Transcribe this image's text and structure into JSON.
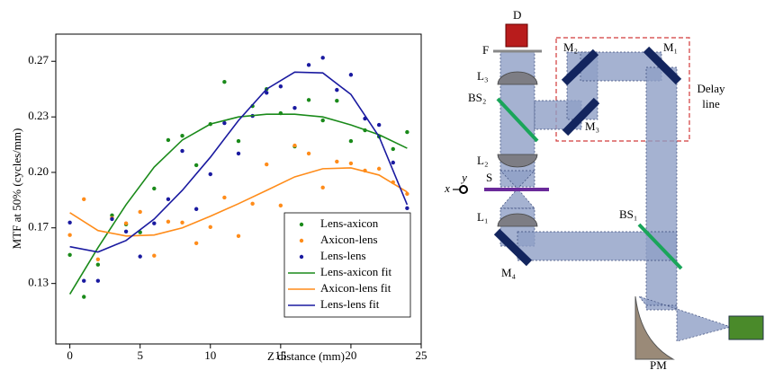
{
  "chart_data": {
    "type": "scatter",
    "xlabel": "Z distance (mm)",
    "ylabel": "MTF at 50% (cycles/mm)",
    "xlim": [
      -1,
      25
    ],
    "ylim": [
      0.097,
      0.283
    ],
    "xticks": [
      0,
      5,
      10,
      15,
      20,
      25
    ],
    "yticks": [
      {
        "value": 0.1333,
        "label": "0.13"
      },
      {
        "value": 0.1667,
        "label": "0.17"
      },
      {
        "value": 0.2,
        "label": "0.20"
      },
      {
        "value": 0.2333,
        "label": "0.23"
      },
      {
        "value": 0.2667,
        "label": "0.27"
      }
    ],
    "legend": "lower right",
    "series": [
      {
        "name": "Lens-axicon",
        "type": "scatter",
        "color": "#1a8a1a",
        "x": [
          0,
          1,
          2,
          3,
          4,
          5,
          6,
          7,
          8,
          9,
          10,
          11,
          12,
          13,
          14,
          15,
          16,
          17,
          18,
          19,
          20,
          21,
          22,
          23,
          24
        ],
        "values": [
          0.1505,
          0.1253,
          0.1446,
          0.1742,
          0.1688,
          0.164,
          0.1903,
          0.2194,
          0.222,
          0.2043,
          0.229,
          0.2543,
          0.2188,
          0.2398,
          0.25,
          0.2355,
          0.2156,
          0.2435,
          0.2312,
          0.243,
          0.2188,
          0.2253,
          0.2215,
          0.214,
          0.2242
        ]
      },
      {
        "name": "Axicon-lens",
        "type": "scatter",
        "color": "#ff8c1a",
        "x": [
          0,
          1,
          2,
          3,
          4,
          5,
          6,
          7,
          8,
          9,
          10,
          11,
          12,
          13,
          14,
          15,
          16,
          17,
          18,
          19,
          20,
          21,
          22,
          23,
          24
        ],
        "values": [
          0.1624,
          0.1839,
          0.1478,
          0.1726,
          0.1694,
          0.1763,
          0.15,
          0.1704,
          0.1699,
          0.1575,
          0.1672,
          0.1849,
          0.1618,
          0.1812,
          0.2048,
          0.1801,
          0.2161,
          0.2113,
          0.1909,
          0.2065,
          0.2054,
          0.2011,
          0.2022,
          0.1941,
          0.1871
        ]
      },
      {
        "name": "Lens-lens",
        "type": "scatter",
        "color": "#1a1aa0",
        "x": [
          0,
          1,
          2,
          3,
          4,
          5,
          6,
          7,
          8,
          9,
          10,
          11,
          12,
          13,
          14,
          15,
          16,
          17,
          18,
          19,
          20,
          21,
          22,
          23,
          24
        ],
        "values": [
          0.1699,
          0.1349,
          0.1349,
          0.172,
          0.1645,
          0.1495,
          0.1694,
          0.1839,
          0.2129,
          0.178,
          0.1989,
          0.2296,
          0.2113,
          0.2339,
          0.2478,
          0.2516,
          0.2387,
          0.2645,
          0.2688,
          0.2495,
          0.2586,
          0.2323,
          0.2285,
          0.2059,
          0.1785
        ]
      },
      {
        "name": "Lens-axicon fit",
        "type": "line",
        "color": "#1a8a1a",
        "x": [
          0,
          2,
          4,
          6,
          8,
          10,
          12,
          14,
          16,
          18,
          20,
          22,
          24
        ],
        "values": [
          0.1269,
          0.1548,
          0.1806,
          0.2032,
          0.2194,
          0.229,
          0.2333,
          0.2349,
          0.2349,
          0.2333,
          0.2285,
          0.2226,
          0.2145
        ]
      },
      {
        "name": "Axicon-lens fit",
        "type": "line",
        "color": "#ff8c1a",
        "x": [
          0,
          2,
          4,
          6,
          8,
          10,
          12,
          14,
          16,
          18,
          20,
          22,
          24
        ],
        "values": [
          0.1758,
          0.1651,
          0.1618,
          0.1624,
          0.1667,
          0.1737,
          0.1812,
          0.1892,
          0.1973,
          0.2022,
          0.2027,
          0.1984,
          0.1882
        ]
      },
      {
        "name": "Lens-lens fit",
        "type": "line",
        "color": "#1a1aa0",
        "x": [
          0,
          2,
          4,
          6,
          8,
          10,
          12,
          14,
          16,
          18,
          20,
          22,
          24
        ],
        "values": [
          0.1554,
          0.1522,
          0.1591,
          0.172,
          0.1892,
          0.2091,
          0.2312,
          0.25,
          0.2602,
          0.2597,
          0.2468,
          0.2215,
          0.1806
        ]
      }
    ]
  },
  "diagram": {
    "labels": {
      "D": "D",
      "F": "F",
      "L3": "L₃",
      "BS2": "BS₂",
      "L2": "L₂",
      "S": "S",
      "x": "x",
      "y": "y",
      "L1": "L₁",
      "M4": "M₄",
      "M2": "M₂",
      "M1": "M₁",
      "M3": "M₃",
      "delay_line": [
        "Delay",
        "line"
      ],
      "BS1": "BS₁",
      "PM": "PM"
    }
  }
}
